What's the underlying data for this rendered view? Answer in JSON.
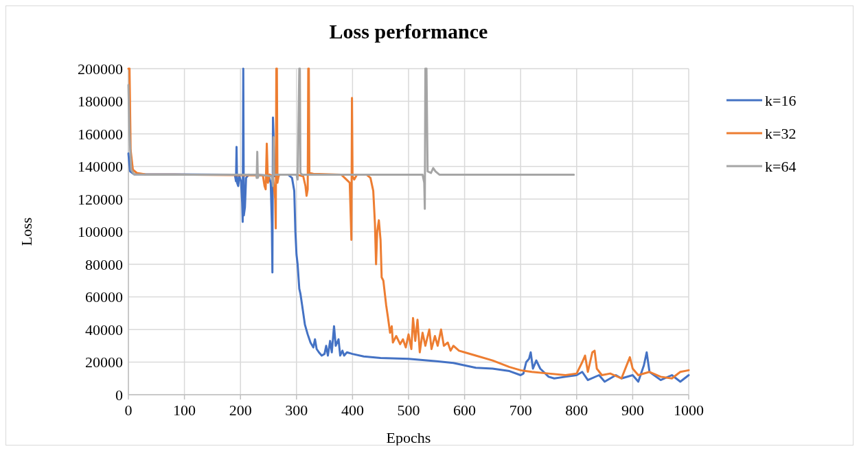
{
  "chart_data": {
    "type": "line",
    "title": "Loss performance",
    "xlabel": "Epochs",
    "ylabel": "Loss",
    "xlim": [
      0,
      1000
    ],
    "xticks": [
      0,
      100,
      200,
      300,
      400,
      500,
      600,
      700,
      800,
      900,
      1000
    ],
    "ylim": [
      0,
      200000
    ],
    "yticks": [
      0,
      20000,
      40000,
      60000,
      80000,
      100000,
      120000,
      140000,
      160000,
      180000,
      200000
    ],
    "grid": true,
    "legend": "right",
    "marker": "none",
    "line_style": "solid",
    "series": [
      {
        "name": "k=16",
        "color": "#4472c4",
        "x": [
          0,
          3,
          10,
          190,
          192,
          193,
          194,
          196,
          198,
          201,
          203,
          204,
          205,
          206,
          208,
          210,
          215,
          250,
          254,
          256,
          257,
          258,
          259,
          261,
          265,
          285,
          292,
          296,
          298,
          300,
          302,
          305,
          307,
          310,
          315,
          320,
          325,
          330,
          333,
          336,
          340,
          345,
          350,
          353,
          356,
          360,
          363,
          367,
          370,
          375,
          378,
          382,
          385,
          390,
          400,
          420,
          450,
          500,
          550,
          580,
          600,
          620,
          650,
          680,
          700,
          705,
          710,
          715,
          718,
          722,
          728,
          735,
          750,
          760,
          780,
          800,
          810,
          820,
          840,
          850,
          870,
          880,
          900,
          910,
          920,
          925,
          930,
          950,
          970,
          985,
          1000
        ],
        "values": [
          148000,
          137000,
          135200,
          135000,
          131000,
          152000,
          130000,
          128000,
          134000,
          131000,
          118000,
          106000,
          200000,
          110000,
          115000,
          133000,
          135000,
          134500,
          130000,
          105000,
          75000,
          170000,
          160000,
          134000,
          135000,
          135000,
          133000,
          125000,
          100000,
          86000,
          80000,
          65000,
          62000,
          55000,
          43000,
          37000,
          32000,
          29000,
          34000,
          28000,
          26000,
          24000,
          25000,
          30000,
          24000,
          33000,
          26000,
          42000,
          30000,
          34000,
          24000,
          27000,
          24000,
          26000,
          25000,
          23500,
          22500,
          22000,
          20500,
          19500,
          18000,
          16500,
          16000,
          14500,
          12000,
          13000,
          20000,
          22000,
          26000,
          16000,
          21000,
          16000,
          11000,
          10000,
          11000,
          12000,
          14000,
          9000,
          12000,
          8000,
          12000,
          10000,
          12000,
          8000,
          18000,
          26000,
          14000,
          9000,
          12000,
          8000,
          12000
        ]
      },
      {
        "name": "k=32",
        "color": "#ed7d31",
        "x": [
          0,
          2,
          4,
          8,
          15,
          30,
          240,
          243,
          245,
          247,
          249,
          252,
          258,
          262,
          263,
          264,
          265,
          266,
          268,
          270,
          300,
          312,
          316,
          318,
          320,
          321,
          322,
          323,
          330,
          380,
          395,
          398,
          399,
          400,
          403,
          408,
          425,
          432,
          437,
          440,
          442,
          444,
          447,
          450,
          452,
          455,
          460,
          463,
          467,
          470,
          472,
          478,
          485,
          490,
          495,
          500,
          505,
          508,
          512,
          516,
          520,
          525,
          530,
          537,
          541,
          547,
          552,
          558,
          563,
          570,
          575,
          580,
          590,
          600,
          620,
          650,
          680,
          700,
          720,
          750,
          780,
          800,
          810,
          815,
          820,
          828,
          832,
          836,
          845,
          860,
          880,
          895,
          900,
          910,
          930,
          950,
          970,
          985,
          1000
        ],
        "values": [
          200000,
          200000,
          150000,
          138000,
          136000,
          135200,
          134500,
          128000,
          126000,
          154000,
          130000,
          135000,
          134000,
          120000,
          102000,
          200000,
          200000,
          130000,
          134000,
          135000,
          135000,
          134000,
          128000,
          122000,
          126000,
          200000,
          200000,
          136000,
          135500,
          135000,
          130000,
          95000,
          182000,
          134000,
          132000,
          135000,
          135000,
          133000,
          125000,
          105000,
          80000,
          100000,
          107000,
          95000,
          72000,
          70000,
          55000,
          48000,
          38000,
          42000,
          32000,
          36000,
          31000,
          34000,
          29000,
          37000,
          28000,
          47000,
          33000,
          46000,
          26000,
          38000,
          30000,
          40000,
          28000,
          36000,
          30000,
          40000,
          30000,
          32000,
          27000,
          30000,
          27000,
          26000,
          24000,
          21000,
          17000,
          15000,
          14000,
          13000,
          12000,
          13000,
          20000,
          24000,
          14000,
          26000,
          27000,
          16000,
          12000,
          13000,
          10000,
          23000,
          16000,
          12000,
          14000,
          11000,
          10000,
          14000,
          15000
        ]
      },
      {
        "name": "k=64",
        "color": "#a5a5a5",
        "x": [
          0,
          2,
          5,
          10,
          30,
          228,
          229,
          230,
          231,
          233,
          256,
          258,
          259,
          260,
          300,
          302,
          305,
          306,
          307,
          310,
          525,
          528,
          529,
          530,
          532,
          534,
          540,
          544,
          548,
          555,
          795
        ],
        "values": [
          190000,
          160000,
          138000,
          135200,
          135000,
          135000,
          133000,
          149000,
          133000,
          135000,
          134000,
          128000,
          158000,
          135000,
          135000,
          132000,
          200000,
          200000,
          136000,
          135000,
          135000,
          130000,
          114000,
          200000,
          200000,
          137000,
          136000,
          139000,
          137000,
          135000,
          135000
        ]
      }
    ]
  }
}
